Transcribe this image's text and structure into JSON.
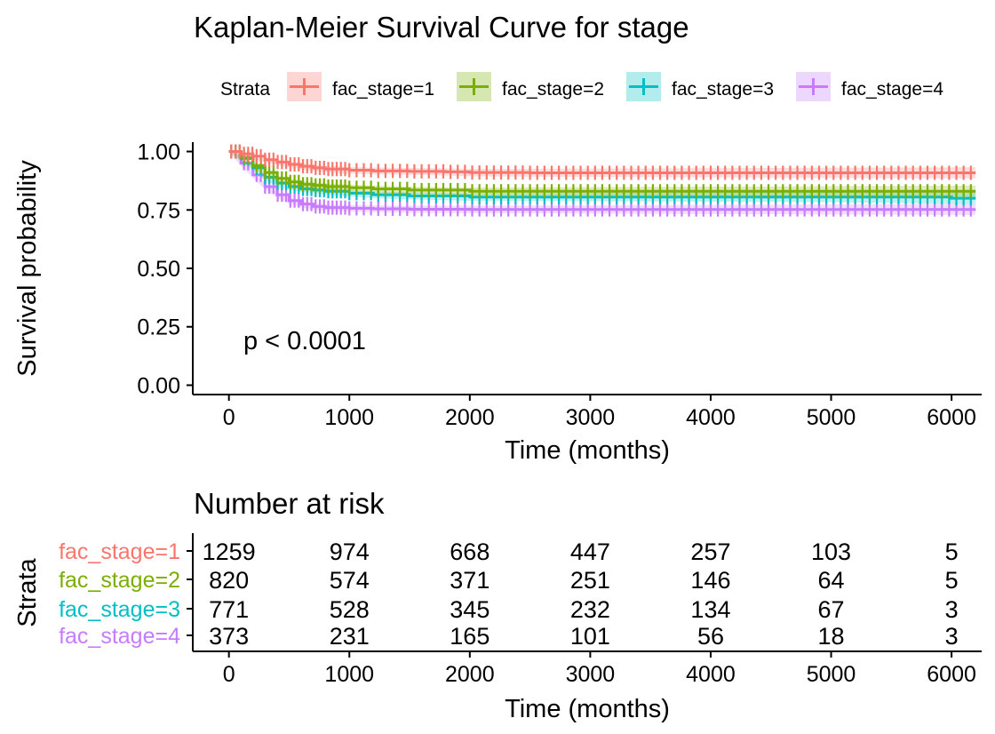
{
  "chart_data": [
    {
      "type": "line",
      "title": "Kaplan-Meier Survival Curve for stage",
      "xlabel": "Time (months)",
      "ylabel": "Survival probability",
      "xlim": [
        -300,
        6250
      ],
      "ylim": [
        -0.04,
        1.04
      ],
      "xticks": [
        0,
        1000,
        2000,
        3000,
        4000,
        5000,
        6000
      ],
      "xtick_labels": [
        "0",
        "1000",
        "2000",
        "3000",
        "4000",
        "5000",
        "6000"
      ],
      "yticks": [
        0,
        0.25,
        0.5,
        0.75,
        1.0
      ],
      "ytick_labels": [
        "0.00",
        "0.25",
        "0.50",
        "0.75",
        "1.00"
      ],
      "grid": false,
      "legend_title": "Strata",
      "legend_position": "top",
      "annotation": "p < 0.0001",
      "series": [
        {
          "name": "fac_stage=1",
          "color": "#F8766D",
          "x": [
            0,
            100,
            200,
            300,
            400,
            500,
            600,
            700,
            800,
            1000,
            1200,
            1500,
            1800,
            2000,
            2500,
            3000,
            4000,
            5000,
            6000,
            6200
          ],
          "y": [
            1.0,
            0.99,
            0.98,
            0.965,
            0.955,
            0.945,
            0.937,
            0.93,
            0.925,
            0.92,
            0.917,
            0.915,
            0.913,
            0.91,
            0.909,
            0.909,
            0.909,
            0.909,
            0.909,
            0.909
          ]
        },
        {
          "name": "fac_stage=2",
          "color": "#7CAE00",
          "x": [
            0,
            100,
            200,
            300,
            400,
            500,
            600,
            700,
            800,
            1000,
            1200,
            1500,
            2000,
            3000,
            4000,
            5000,
            6000,
            6200
          ],
          "y": [
            1.0,
            0.975,
            0.94,
            0.91,
            0.885,
            0.87,
            0.86,
            0.855,
            0.85,
            0.845,
            0.84,
            0.835,
            0.83,
            0.83,
            0.83,
            0.83,
            0.83,
            0.83
          ]
        },
        {
          "name": "fac_stage=3",
          "color": "#00BFC4",
          "x": [
            0,
            100,
            200,
            300,
            400,
            500,
            600,
            700,
            800,
            1000,
            1200,
            1500,
            2000,
            3000,
            4000,
            5000,
            6000,
            6200
          ],
          "y": [
            1.0,
            0.97,
            0.93,
            0.89,
            0.865,
            0.85,
            0.84,
            0.835,
            0.83,
            0.822,
            0.815,
            0.81,
            0.805,
            0.805,
            0.805,
            0.805,
            0.8,
            0.8
          ]
        },
        {
          "name": "fac_stage=4",
          "color": "#C77CFF",
          "x": [
            0,
            100,
            200,
            300,
            400,
            500,
            600,
            700,
            800,
            1000,
            1200,
            1500,
            2000,
            3000,
            4000,
            5000,
            6000,
            6200
          ],
          "y": [
            1.0,
            0.95,
            0.9,
            0.85,
            0.815,
            0.79,
            0.775,
            0.765,
            0.76,
            0.757,
            0.755,
            0.753,
            0.752,
            0.752,
            0.752,
            0.752,
            0.752,
            0.752
          ]
        }
      ]
    },
    {
      "type": "table",
      "title": "Number at risk",
      "xlabel": "Time (months)",
      "ylabel": "Strata",
      "xlim": [
        -300,
        6250
      ],
      "xticks": [
        0,
        1000,
        2000,
        3000,
        4000,
        5000,
        6000
      ],
      "xtick_labels": [
        "0",
        "1000",
        "2000",
        "3000",
        "4000",
        "5000",
        "6000"
      ],
      "rows": [
        {
          "label": "fac_stage=1",
          "color": "#F8766D",
          "values": [
            "1259",
            "974",
            "668",
            "447",
            "257",
            "103",
            "5"
          ]
        },
        {
          "label": "fac_stage=2",
          "color": "#7CAE00",
          "values": [
            "820",
            "574",
            "371",
            "251",
            "146",
            "64",
            "5"
          ]
        },
        {
          "label": "fac_stage=3",
          "color": "#00BFC4",
          "values": [
            "771",
            "528",
            "345",
            "232",
            "134",
            "67",
            "3"
          ]
        },
        {
          "label": "fac_stage=4",
          "color": "#C77CFF",
          "values": [
            "373",
            "231",
            "165",
            "101",
            "56",
            "18",
            "3"
          ]
        }
      ]
    }
  ]
}
